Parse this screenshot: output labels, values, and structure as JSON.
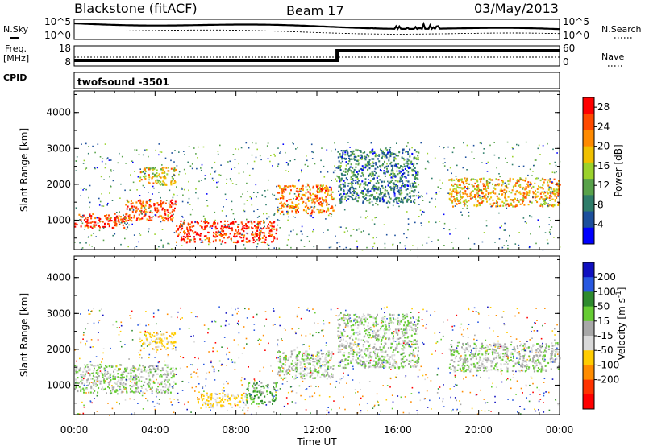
{
  "header": {
    "station": "Blackstone (fitACF)",
    "beam": "Beam 17",
    "date": "03/May/2013"
  },
  "status_panels": {
    "nsky_label": "N.Sky",
    "nsearch_label": "N.Search",
    "noise_ticks": [
      "10^5",
      "10^0"
    ],
    "noise_ticks_right": [
      "10^5",
      "10^0"
    ],
    "freq_label_1": "Freq.",
    "freq_label_2": "[MHz]",
    "freq_ticks": [
      "18",
      "8"
    ],
    "nave_label": "Nave",
    "nave_ticks": [
      "60",
      "0"
    ],
    "cpid_label": "CPID",
    "cpid_value": "twofsound -3501"
  },
  "colors": {
    "power_scale": [
      "#0000ff",
      "#1c4f9c",
      "#2f7d6a",
      "#58a24a",
      "#9bd22c",
      "#f0c000",
      "#ff8a00",
      "#ff4a00",
      "#ff0000"
    ],
    "velocity_scale": [
      "#1010c0",
      "#2858e0",
      "#2e8b2e",
      "#66cc33",
      "#a8a8a8",
      "#d9d9d9",
      "#ffcc00",
      "#ff8c00",
      "#ff3300",
      "#ff0000"
    ],
    "ground_scatter": "#a8a8a8"
  },
  "chart_data": [
    {
      "type": "heatmap",
      "title": "Power",
      "ylabel": "Slant Range [km]",
      "ylim": [
        180,
        4600
      ],
      "xlim": [
        "00:00",
        "24:00"
      ],
      "yticks": [
        "1000",
        "2000",
        "3000",
        "4000"
      ],
      "colorbar": {
        "label": "Power [dB]",
        "ticks": [
          "4",
          "8",
          "12",
          "16",
          "20",
          "24",
          "28"
        ],
        "range": [
          0,
          30
        ]
      },
      "regions": [
        {
          "t_start": 0.0,
          "t_end": 2.5,
          "r_start": 800,
          "r_end": 1200,
          "power_db": 26
        },
        {
          "t_start": 2.5,
          "t_end": 5.0,
          "r_start": 1000,
          "r_end": 1600,
          "power_db": 25
        },
        {
          "t_start": 5.0,
          "t_end": 10.0,
          "r_start": 400,
          "r_end": 1000,
          "power_db": 27
        },
        {
          "t_start": 10.0,
          "t_end": 12.8,
          "r_start": 1200,
          "r_end": 2000,
          "power_db": 22
        },
        {
          "t_start": 3.2,
          "t_end": 5.0,
          "r_start": 2000,
          "r_end": 2500,
          "power_db": 18
        },
        {
          "t_start": 13.0,
          "t_end": 17.0,
          "r_start": 1500,
          "r_end": 3000,
          "power_db": 8
        },
        {
          "t_start": 18.5,
          "t_end": 24.0,
          "r_start": 1400,
          "r_end": 2200,
          "power_db": 20
        }
      ]
    },
    {
      "type": "heatmap",
      "title": "Velocity",
      "ylabel": "Slant Range [km]",
      "xlabel": "Time UT",
      "ylim": [
        180,
        4600
      ],
      "xlim": [
        "00:00",
        "24:00"
      ],
      "xticks": [
        "00:00",
        "04:00",
        "08:00",
        "12:00",
        "16:00",
        "20:00",
        "00:00"
      ],
      "yticks": [
        "1000",
        "2000",
        "3000",
        "4000"
      ],
      "colorbar": {
        "label": "Velocity [m s^-1]",
        "ticks": [
          "200",
          "100",
          "50",
          "15",
          "-15",
          "-50",
          "-100",
          "-200"
        ],
        "range": [
          -250,
          250
        ]
      },
      "regions": [
        {
          "t_start": 0.0,
          "t_end": 5.0,
          "r_start": 800,
          "r_end": 1600,
          "velocity": 0
        },
        {
          "t_start": 6.0,
          "t_end": 8.5,
          "r_start": 400,
          "r_end": 800,
          "velocity": -60
        },
        {
          "t_start": 8.5,
          "t_end": 10.0,
          "r_start": 500,
          "r_end": 1100,
          "velocity": 40
        },
        {
          "t_start": 10.0,
          "t_end": 12.8,
          "r_start": 1200,
          "r_end": 2000,
          "velocity": 0
        },
        {
          "t_start": 3.2,
          "t_end": 5.0,
          "r_start": 2000,
          "r_end": 2500,
          "velocity": -60
        },
        {
          "t_start": 13.0,
          "t_end": 17.0,
          "r_start": 1500,
          "r_end": 3000,
          "velocity": 0
        },
        {
          "t_start": 18.5,
          "t_end": 24.0,
          "r_start": 1400,
          "r_end": 2200,
          "velocity": 0
        }
      ]
    }
  ]
}
